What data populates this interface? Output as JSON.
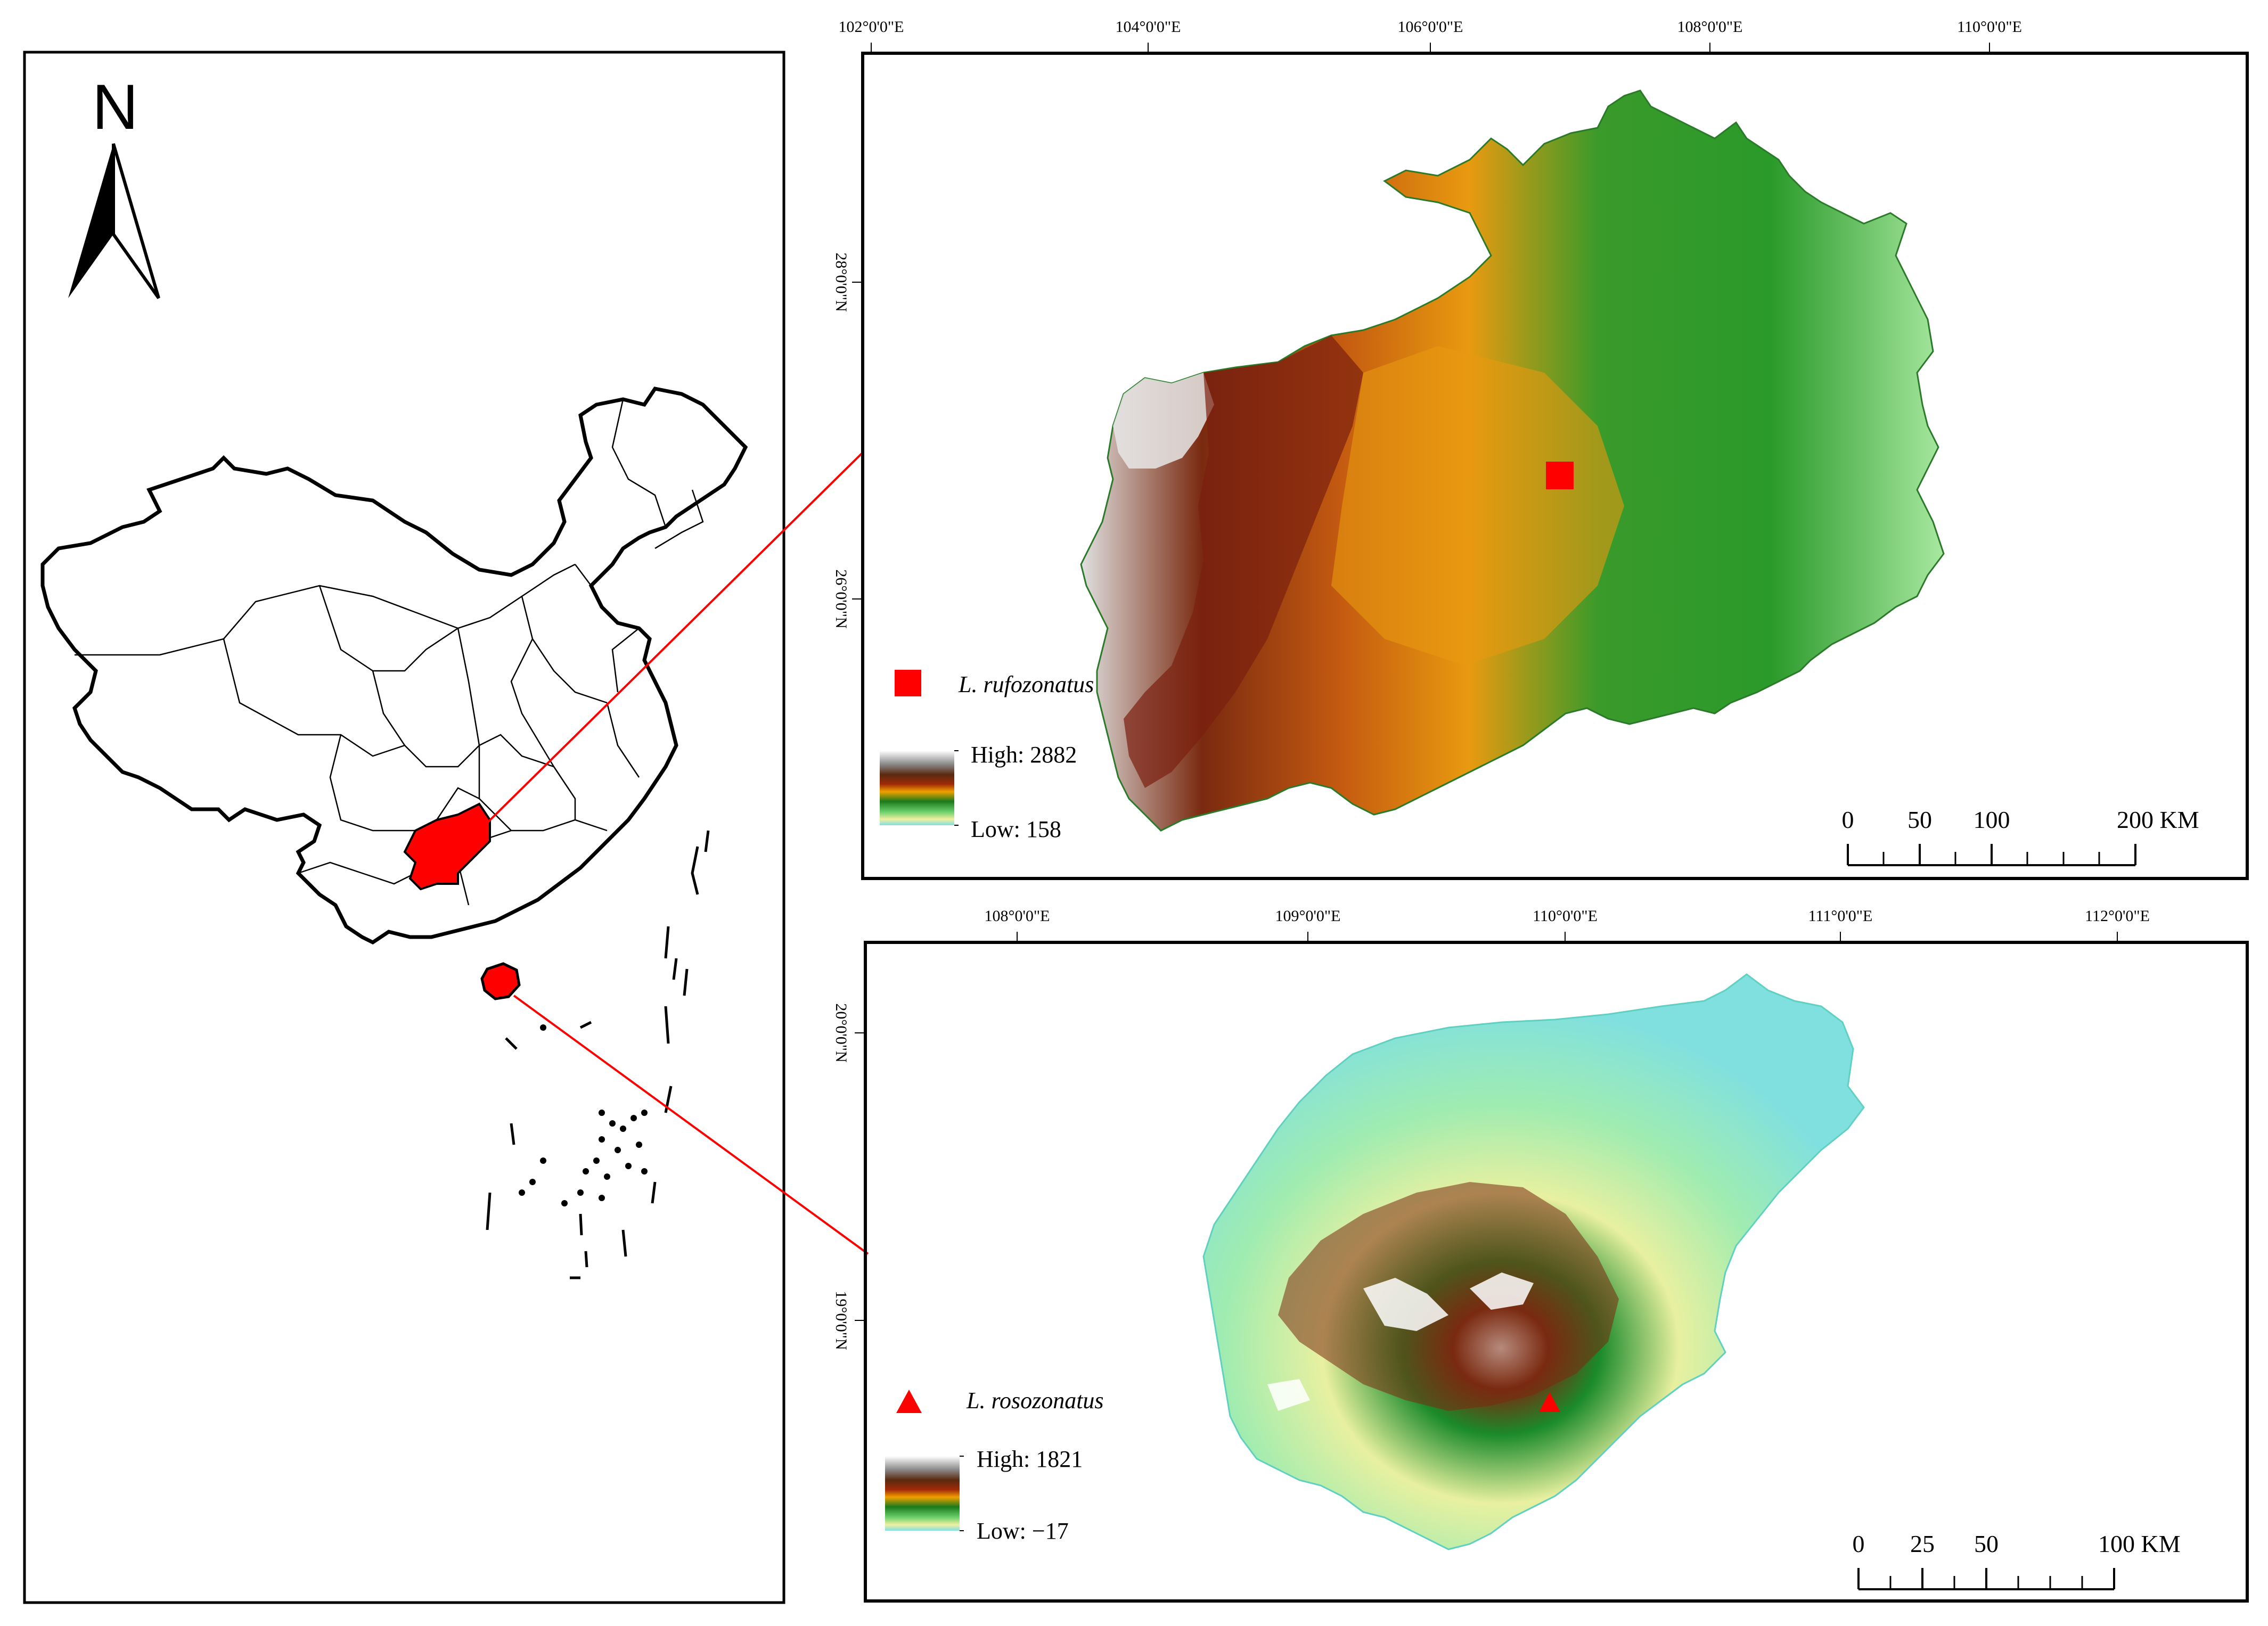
{
  "north_arrow": {
    "label": "N",
    "icon": "north-arrow-icon"
  },
  "overview_map": {
    "highlight_color": "#ff0000",
    "highlighted_regions": [
      "Guizhou",
      "Hainan"
    ]
  },
  "top_map": {
    "longitude_ticks": [
      "102°0'0\"E",
      "104°0'0\"E",
      "106°0'0\"E",
      "108°0'0\"E",
      "110°0'0\"E"
    ],
    "latitude_ticks": [
      "28°0'0\"N",
      "26°0'0\"N"
    ],
    "species_label": "L. rufozonatus",
    "species_symbol": "red-square-icon",
    "elevation_high": "High: 2882",
    "elevation_low": "Low: 158",
    "scale_labels": [
      "0",
      "50",
      "100",
      "200 KM"
    ]
  },
  "bottom_map": {
    "longitude_ticks": [
      "108°0'0\"E",
      "109°0'0\"E",
      "110°0'0\"E",
      "111°0'0\"E",
      "112°0'0\"E"
    ],
    "latitude_ticks": [
      "20°0'0\"N",
      "19°0'0\"N"
    ],
    "species_label": "L. rosozonatus",
    "species_symbol": "red-triangle-icon",
    "elevation_high": "High: 1821",
    "elevation_low": "Low: −17",
    "scale_labels": [
      "0",
      "25",
      "50",
      "100 KM"
    ]
  },
  "colors": {
    "marker": "#ff0000",
    "connector": "#ff0000"
  }
}
